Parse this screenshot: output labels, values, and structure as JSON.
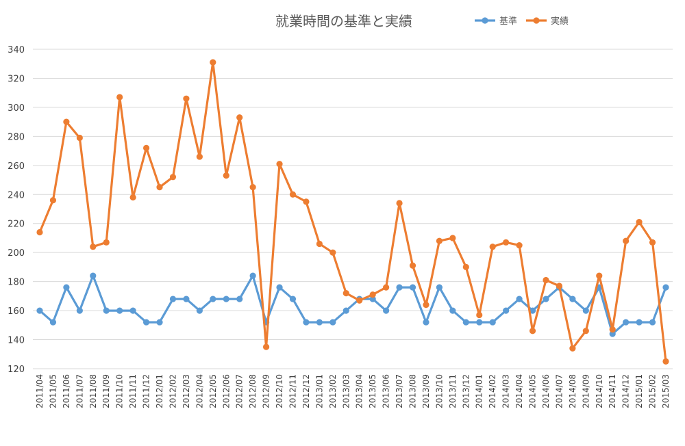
{
  "chart_data": {
    "type": "line",
    "title": "就業時間の基準と実績",
    "xlabel": "",
    "ylabel": "",
    "ylim": [
      120,
      340
    ],
    "yticks": [
      120,
      140,
      160,
      180,
      200,
      220,
      240,
      260,
      280,
      300,
      320,
      340
    ],
    "grid": true,
    "legend_position": "top-right",
    "categories": [
      "2011/04",
      "2011/05",
      "2011/06",
      "2011/07",
      "2011/08",
      "2011/09",
      "2011/10",
      "2011/11",
      "2011/12",
      "2012/01",
      "2012/02",
      "2012/03",
      "2012/04",
      "2012/05",
      "2012/06",
      "2012/07",
      "2012/08",
      "2012/09",
      "2012/10",
      "2012/11",
      "2012/12",
      "2013/01",
      "2013/02",
      "2013/03",
      "2013/04",
      "2013/05",
      "2013/06",
      "2013/07",
      "2013/08",
      "2013/09",
      "2013/10",
      "2013/11",
      "2013/12",
      "2014/01",
      "2014/02",
      "2014/03",
      "2014/04",
      "2014/05",
      "2014/06",
      "2014/07",
      "2014/08",
      "2014/09",
      "2014/10",
      "2014/11",
      "2014/12",
      "2015/01",
      "2015/02",
      "2015/03"
    ],
    "series": [
      {
        "name": "基準",
        "color": "#5b9bd5",
        "values": [
          160,
          152,
          176,
          160,
          184,
          160,
          160,
          160,
          152,
          152,
          168,
          168,
          160,
          168,
          168,
          168,
          184,
          152,
          176,
          168,
          152,
          152,
          152,
          160,
          168,
          168,
          160,
          176,
          176,
          152,
          176,
          160,
          152,
          152,
          152,
          160,
          168,
          160,
          168,
          176,
          168,
          160,
          176,
          144,
          152,
          152,
          152,
          176
        ]
      },
      {
        "name": "実績",
        "color": "#ed7d31",
        "values": [
          214,
          236,
          290,
          279,
          204,
          207,
          307,
          238,
          272,
          245,
          252,
          306,
          266,
          331,
          253,
          293,
          245,
          135,
          261,
          240,
          235,
          206,
          200,
          172,
          167,
          171,
          176,
          234,
          191,
          164,
          208,
          210,
          190,
          157,
          204,
          207,
          205,
          146,
          181,
          177,
          134,
          146,
          184,
          147,
          208,
          221,
          207,
          125
        ]
      }
    ]
  }
}
